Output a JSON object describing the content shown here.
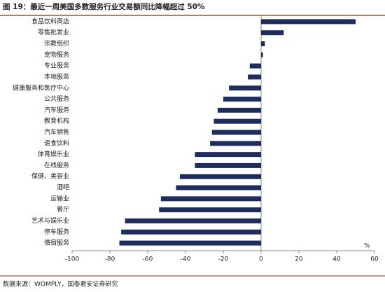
{
  "chart_data": {
    "type": "hbar",
    "title": "图 19：最近一周美国多数服务行业交易额同比降幅超过 50%",
    "source": "数据来源：WOMPLY，国泰君安证券研究",
    "unit_label": "%",
    "categories": [
      "食品饮料商店",
      "零售批发业",
      "宗教组织",
      "宠物服务",
      "专业服务",
      "本地服务",
      "健康服务和医疗中心",
      "公共服务",
      "汽车服务",
      "教育机构",
      "汽车销售",
      "速食饮料",
      "体育娱乐业",
      "在线服务",
      "保健、美容业",
      "酒吧",
      "运输业",
      "餐厅",
      "艺术与娱乐业",
      "停车服务",
      "借宿服务"
    ],
    "values": [
      50,
      12,
      2,
      1,
      -6,
      -7,
      -17,
      -20,
      -23,
      -25,
      -26,
      -27,
      -35,
      -35,
      -43,
      -45,
      -53,
      -54,
      -72,
      -74,
      -75
    ],
    "color": "#1f2d5c",
    "xlim": [
      -100,
      60
    ],
    "xticks": [
      -100,
      -80,
      -60,
      -40,
      -20,
      0,
      20,
      40,
      60
    ],
    "grid": false
  }
}
